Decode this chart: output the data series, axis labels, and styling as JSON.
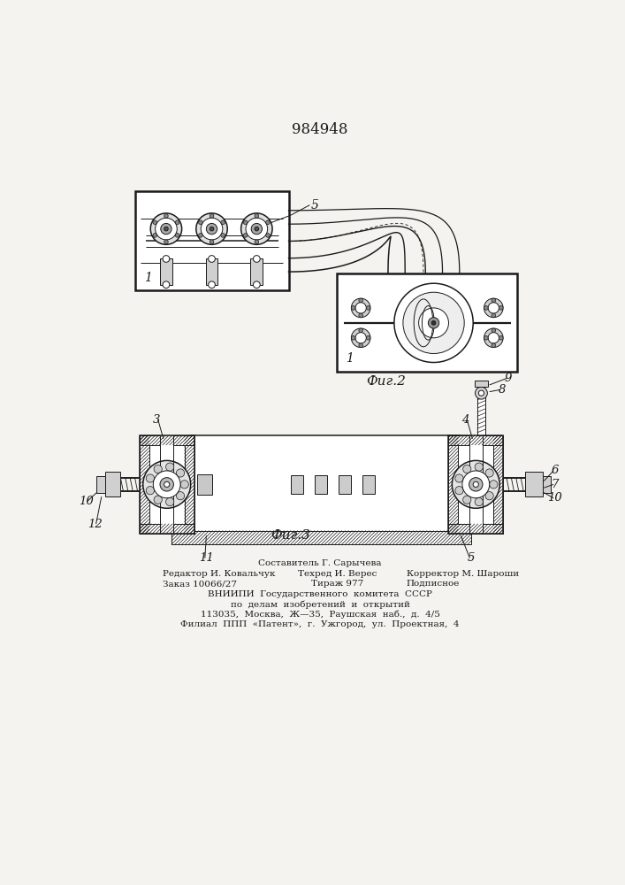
{
  "title": "984948",
  "bg_color": "#f5f3ef",
  "line_color": "#1a1a1a",
  "fig1_label": "Фиг.2",
  "fig2_label": "Фиг.3",
  "footer": {
    "line1_center": "Составитель Г. Сарычева",
    "line2_left": "Редактор И. Ковальчук",
    "line2_center": "Техред И. Верес",
    "line2_right": "Корректор М. Шароши",
    "line3_left": "Заказ 10066/27",
    "line3_center": "Тираж 977",
    "line3_right": "Подписное",
    "vniipи": [
      "ВНИИПИ  Государственного  комитета  СССР",
      "по  делам  изобретений  и  открытий",
      "113035,  Москва,  Ж—35,  Раушская  наб.,  д.  4/5",
      "Филиал  ППП  «Патент»,  г.  Ужгород,  ул.  Проектная,  4"
    ]
  }
}
